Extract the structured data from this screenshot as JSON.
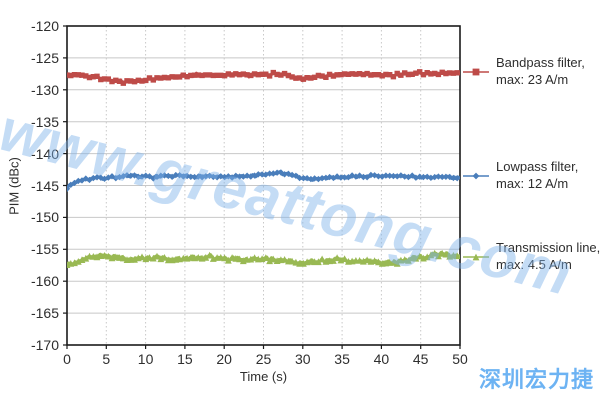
{
  "chart_data": {
    "type": "line",
    "title": "",
    "xlabel": "Time (s)",
    "ylabel": "PIM (dBc)",
    "xlim": [
      0,
      50
    ],
    "ylim": [
      -170,
      -120
    ],
    "xticks": [
      0,
      5,
      10,
      15,
      20,
      25,
      30,
      35,
      40,
      45,
      50
    ],
    "yticks": [
      -120,
      -125,
      -130,
      -135,
      -140,
      -145,
      -150,
      -155,
      -160,
      -165,
      -170
    ],
    "grid": true,
    "legend_position": "right",
    "series": [
      {
        "name": "Bandpass filter, max: 23 A/m",
        "label_line1": "Bandpass filter,",
        "label_line2": "max: 23 A/m",
        "color": "#BE4B48",
        "marker": "square",
        "trend": [
          [
            0,
            -127.7
          ],
          [
            3,
            -127.8
          ],
          [
            6,
            -128.6
          ],
          [
            9,
            -128.8
          ],
          [
            12,
            -128.2
          ],
          [
            16,
            -127.7
          ],
          [
            20,
            -127.6
          ],
          [
            24,
            -127.8
          ],
          [
            27,
            -127.5
          ],
          [
            30,
            -128.2
          ],
          [
            33,
            -127.8
          ],
          [
            37,
            -127.6
          ],
          [
            41,
            -127.7
          ],
          [
            45,
            -127.4
          ],
          [
            50,
            -127.4
          ]
        ],
        "noise_fast": 0.35,
        "noise_slow": 0.12,
        "seed": 42
      },
      {
        "name": "Lowpass filter, max: 12 A/m",
        "label_line1": "Lowpass filter,",
        "label_line2": "max: 12 A/m",
        "color": "#4A7EBB",
        "marker": "diamond",
        "trend": [
          [
            0,
            -145.2
          ],
          [
            1.5,
            -144.2
          ],
          [
            3,
            -143.9
          ],
          [
            7,
            -143.6
          ],
          [
            12,
            -143.7
          ],
          [
            17,
            -143.5
          ],
          [
            21,
            -143.7
          ],
          [
            25,
            -143.4
          ],
          [
            27,
            -143.0
          ],
          [
            29,
            -143.6
          ],
          [
            31,
            -144.0
          ],
          [
            34,
            -143.7
          ],
          [
            38,
            -143.5
          ],
          [
            43,
            -143.6
          ],
          [
            47,
            -143.7
          ],
          [
            50,
            -143.8
          ]
        ],
        "noise_fast": 0.3,
        "noise_slow": 0.1,
        "seed": 7
      },
      {
        "name": "Transmission line, max: 4.5 A/m",
        "label_line1": "Transmission line,",
        "label_line2": "max: 4.5 A/m",
        "color": "#99B953",
        "marker": "triangle",
        "trend": [
          [
            0,
            -157.4
          ],
          [
            2,
            -156.5
          ],
          [
            4,
            -155.9
          ],
          [
            6,
            -156.2
          ],
          [
            8,
            -156.6
          ],
          [
            11,
            -156.3
          ],
          [
            15,
            -156.5
          ],
          [
            19,
            -156.2
          ],
          [
            23,
            -156.5
          ],
          [
            27,
            -156.6
          ],
          [
            30,
            -157.1
          ],
          [
            34,
            -156.7
          ],
          [
            38,
            -156.9
          ],
          [
            42,
            -157.0
          ],
          [
            45,
            -156.2
          ],
          [
            48,
            -155.7
          ],
          [
            50,
            -155.9
          ]
        ],
        "noise_fast": 0.45,
        "noise_slow": 0.12,
        "seed": 99
      }
    ],
    "grid_color": "#c8c8c8",
    "axis_color": "#1a1a1a"
  },
  "watermark": {
    "text": "www.greattong.com",
    "color": "#7DB2EB"
  },
  "brand": {
    "text": "深圳宏力捷",
    "color": "#6DB3F3"
  }
}
